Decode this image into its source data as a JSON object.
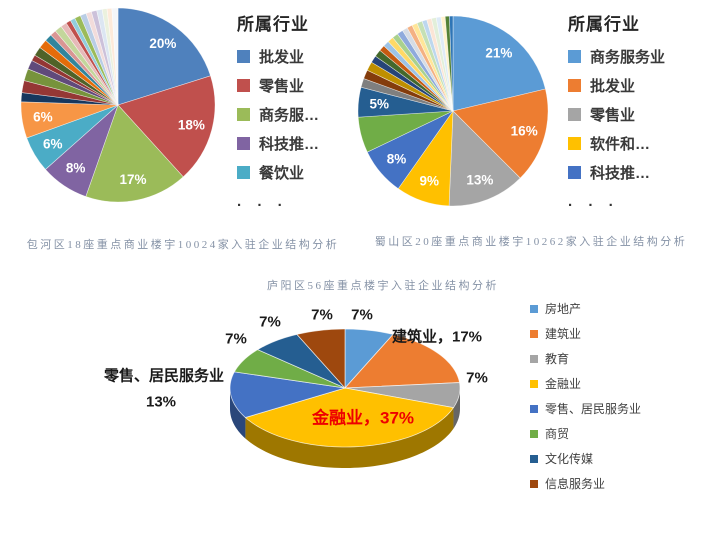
{
  "chart_data": [
    {
      "type": "pie",
      "caption": "包河区18座重点商业楼宇10024家入驻企业结构分析",
      "legend_title": "所属行业",
      "legend_position": "right",
      "legend": [
        {
          "label": "批发业",
          "color": "#4F81BD"
        },
        {
          "label": "零售业",
          "color": "#C0504D"
        },
        {
          "label": "商务服…",
          "color": "#9BBB59"
        },
        {
          "label": "科技推…",
          "color": "#8064A2"
        },
        {
          "label": "餐饮业",
          "color": "#4BACC6"
        }
      ],
      "legend_ellipsis": ". . .",
      "slices": [
        {
          "name": "批发业",
          "value": 20,
          "color": "#4F81BD",
          "label": "20%"
        },
        {
          "name": "零售业",
          "value": 18,
          "color": "#C0504D",
          "label": "18%"
        },
        {
          "name": "商务服…",
          "value": 17,
          "color": "#9BBB59",
          "label": "17%"
        },
        {
          "name": "科技推…",
          "value": 8,
          "color": "#8064A2",
          "label": "8%"
        },
        {
          "name": "餐饮业",
          "value": 6,
          "color": "#4BACC6",
          "label": "6%"
        },
        {
          "value": 6,
          "color": "#F79646",
          "label": "6%"
        },
        {
          "value": 1.5,
          "color": "#17375E"
        },
        {
          "value": 2,
          "color": "#953735"
        },
        {
          "value": 2,
          "color": "#77933C"
        },
        {
          "value": 1.5,
          "color": "#604A7B"
        },
        {
          "value": 1,
          "color": "#943634"
        },
        {
          "value": 1.5,
          "color": "#4F6228"
        },
        {
          "value": 1.5,
          "color": "#E46C0A"
        },
        {
          "value": 1.2,
          "color": "#31859C"
        },
        {
          "value": 1,
          "color": "#D99694"
        },
        {
          "value": 1.2,
          "color": "#C3D69B"
        },
        {
          "value": 1,
          "color": "#E6B9B8"
        },
        {
          "value": 0.8,
          "color": "#C0504D"
        },
        {
          "value": 0.8,
          "color": "#92CDDC"
        },
        {
          "value": 1,
          "color": "#9BBB59"
        },
        {
          "value": 1,
          "color": "#B9CDE5"
        },
        {
          "value": 0.9,
          "color": "#F2DCDB"
        },
        {
          "value": 0.9,
          "color": "#CCC1DA"
        },
        {
          "value": 0.9,
          "color": "#DCE6F2"
        },
        {
          "value": 0.8,
          "color": "#EBF1DE"
        },
        {
          "value": 0.8,
          "color": "#FDEADA"
        },
        {
          "value": 1,
          "color": "#F4F6F9"
        }
      ]
    },
    {
      "type": "pie",
      "caption": "蜀山区20座重点商业楼宇10262家入驻企业结构分析",
      "legend_title": "所属行业",
      "legend_position": "right",
      "legend": [
        {
          "label": "商务服务业",
          "color": "#5B9BD5"
        },
        {
          "label": "批发业",
          "color": "#ED7D31"
        },
        {
          "label": "零售业",
          "color": "#A5A5A5"
        },
        {
          "label": "软件和…",
          "color": "#FFC000"
        },
        {
          "label": "科技推…",
          "color": "#4472C4"
        }
      ],
      "legend_ellipsis": ". . .",
      "slices": [
        {
          "name": "商务服务业",
          "value": 21,
          "color": "#5B9BD5",
          "label": "21%"
        },
        {
          "name": "批发业",
          "value": 16,
          "color": "#ED7D31",
          "label": "16%"
        },
        {
          "name": "零售业",
          "value": 13,
          "color": "#A5A5A5",
          "label": "13%"
        },
        {
          "name": "软件和…",
          "value": 9,
          "color": "#FFC000",
          "label": "9%"
        },
        {
          "name": "科技推…",
          "value": 8,
          "color": "#4472C4",
          "label": "8%"
        },
        {
          "value": 6,
          "color": "#70AD47"
        },
        {
          "value": 5,
          "color": "#255E91",
          "label": "5%"
        },
        {
          "value": 1.5,
          "color": "#7F7F7F"
        },
        {
          "value": 1.5,
          "color": "#843C0C"
        },
        {
          "value": 1.5,
          "color": "#BF8F00"
        },
        {
          "value": 1.2,
          "color": "#264478"
        },
        {
          "value": 1.2,
          "color": "#43682B"
        },
        {
          "value": 1,
          "color": "#C55A11"
        },
        {
          "value": 1,
          "color": "#9DC3E6"
        },
        {
          "value": 1,
          "color": "#FFD966"
        },
        {
          "value": 1,
          "color": "#A9D18E"
        },
        {
          "value": 1,
          "color": "#8FAADC"
        },
        {
          "value": 0.9,
          "color": "#D6DCE5"
        },
        {
          "value": 0.9,
          "color": "#F4B183"
        },
        {
          "value": 0.9,
          "color": "#FFE699"
        },
        {
          "value": 0.9,
          "color": "#C5E0B4"
        },
        {
          "value": 0.8,
          "color": "#BDD7EE"
        },
        {
          "value": 0.8,
          "color": "#FBE5D6"
        },
        {
          "value": 0.8,
          "color": "#E2EFDA"
        },
        {
          "value": 0.8,
          "color": "#DEEBF7"
        },
        {
          "value": 0.7,
          "color": "#FFF2CC"
        },
        {
          "value": 0.7,
          "color": "#538135"
        },
        {
          "value": 0.6,
          "color": "#2E75B6"
        }
      ]
    },
    {
      "type": "pie3d",
      "title": "庐阳区56座重点楼宇入驻企业结构分析",
      "legend_position": "right",
      "legend": [
        {
          "label": "房地产",
          "color": "#5B9BD5"
        },
        {
          "label": "建筑业",
          "color": "#ED7D31"
        },
        {
          "label": "教育",
          "color": "#A5A5A5"
        },
        {
          "label": "金融业",
          "color": "#FFC000"
        },
        {
          "label": "零售、居民服务业",
          "color": "#4472C4"
        },
        {
          "label": "商贸",
          "color": "#70AD47"
        },
        {
          "label": "文化传媒",
          "color": "#255E91"
        },
        {
          "label": "信息服务业",
          "color": "#9E480E"
        }
      ],
      "slices": [
        {
          "name": "房地产",
          "value": 7,
          "color": "#5B9BD5"
        },
        {
          "name": "建筑业",
          "value": 17,
          "color": "#ED7D31"
        },
        {
          "name": "教育",
          "value": 7,
          "color": "#A5A5A5"
        },
        {
          "name": "金融业",
          "value": 37,
          "color": "#FFC000"
        },
        {
          "name": "零售、居民服务业",
          "value": 13,
          "color": "#4472C4"
        },
        {
          "name": "商贸",
          "value": 7,
          "color": "#70AD47"
        },
        {
          "name": "文化传媒",
          "value": 7,
          "color": "#255E91"
        },
        {
          "name": "信息服务业",
          "value": 7,
          "color": "#9E480E"
        }
      ],
      "callouts": [
        {
          "text": "7%",
          "for": "商贸"
        },
        {
          "text": "7%",
          "for": "文化传媒"
        },
        {
          "text": "7%",
          "for": "信息服务业"
        },
        {
          "text": "7%",
          "for": "房地产"
        },
        {
          "text": "建筑业，17%",
          "for": "建筑业"
        },
        {
          "text": "7%",
          "for": "教育"
        },
        {
          "text": "零售、居民服务业",
          "for": "零售、居民服务业"
        },
        {
          "text": "13%",
          "for": "零售、居民服务业"
        },
        {
          "text": "金融业，37%",
          "for": "金融业",
          "color": "#EE0000"
        }
      ]
    }
  ]
}
